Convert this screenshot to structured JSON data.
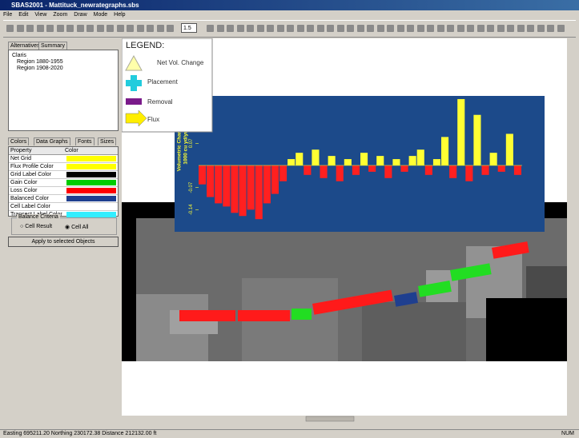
{
  "window": {
    "title": "SBAS2001 - Mattituck_newrategraphs.sbs"
  },
  "menu": [
    "File",
    "Edit",
    "View",
    "Zoom",
    "Draw",
    "Mode",
    "Help"
  ],
  "toolbar": {
    "zoom": "1.5"
  },
  "left_panel": {
    "tabs": [
      "Alternatives",
      "Summary"
    ],
    "tree": [
      "Claris",
      "Region 1880-1955",
      "Region 1908-2020"
    ],
    "property_tabs": [
      "Colors",
      "Data Graphs",
      "Fonts",
      "Sizes"
    ],
    "table": {
      "header": [
        "Property",
        "Color"
      ],
      "rows": [
        {
          "name": "Net Grid",
          "color": "#ffff00"
        },
        {
          "name": "Flux Profile Color",
          "color": "#ffff00"
        },
        {
          "name": "Grid Label Color",
          "color": "#000000"
        },
        {
          "name": "Gain Color",
          "color": "#00cc00"
        },
        {
          "name": "Loss Color",
          "color": "#ff0000"
        },
        {
          "name": "Balanced Color",
          "color": "#1f3f8f"
        },
        {
          "name": "Cell Label Color",
          "color": "#ffffff"
        },
        {
          "name": "Transect Label Color",
          "color": "#33eeff"
        }
      ]
    },
    "balance": {
      "label": "Balance Criteria",
      "options": [
        "Cell Result",
        "Cell All"
      ]
    },
    "button": "Apply to selected Objects"
  },
  "legend": {
    "title": "LEGEND:",
    "items": [
      "Net Vol. Change",
      "Placement",
      "Removal",
      "Flux"
    ]
  },
  "chart_data": {
    "type": "bar",
    "y_label": "Volumetric Change",
    "y_units": "1000 cu yd/yr",
    "values": [
      -0.06,
      -0.1,
      -0.12,
      -0.13,
      -0.15,
      -0.16,
      -0.14,
      -0.17,
      -0.12,
      -0.09,
      -0.05,
      0.02,
      0.04,
      -0.03,
      0.05,
      -0.04,
      0.03,
      -0.05,
      0.02,
      -0.03,
      0.04,
      -0.02,
      0.03,
      -0.04,
      0.02,
      -0.02,
      0.03,
      0.05,
      -0.03,
      0.02,
      0.09,
      -0.04,
      0.21,
      -0.05,
      0.16,
      -0.03,
      0.04,
      -0.02,
      0.1,
      -0.03
    ],
    "pos_color": "#ffff33",
    "neg_color": "#ff2020",
    "ylim": [
      -0.21,
      0.22
    ],
    "yticks": [
      -0.14,
      -0.07,
      0.07
    ]
  },
  "status": {
    "text": "Easting 695211.20  Northing 230172.38  Distance 212132.00 ft",
    "num": "NUM"
  }
}
